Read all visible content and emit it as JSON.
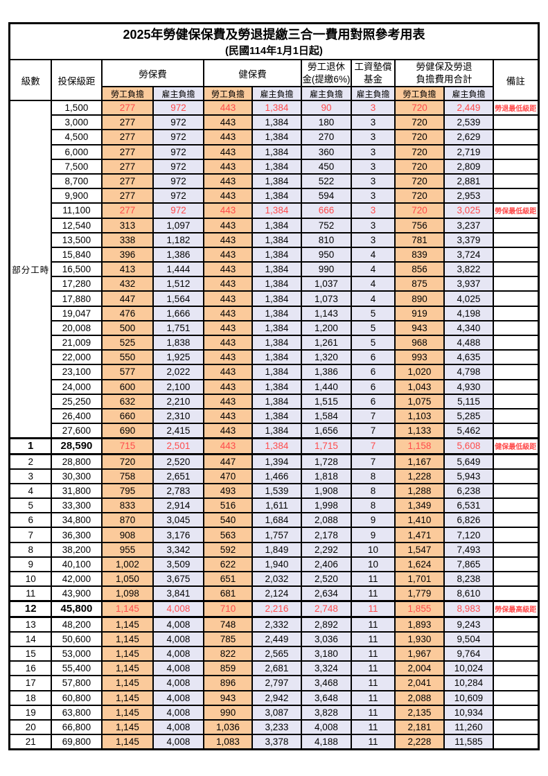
{
  "title": "2025年勞健保保費及勞退提繳三合一費用對照參考用表",
  "subtitle": "(民國114年1月1日起)",
  "columns": {
    "level": "級數",
    "bracket": "投保級距",
    "labor_insurance": "勞保費",
    "health_insurance": "健保費",
    "pension_line1": "勞工退休",
    "pension_line2": "金(提繳6%)",
    "wage_fund_line1": "工資墊償",
    "wage_fund_line2": "基金",
    "total_line1": "勞健保及勞退",
    "total_line2": "負擔費用合計",
    "remark": "備註"
  },
  "sub": {
    "employee": "勞工負擔",
    "employer": "雇主負擔"
  },
  "part_time": {
    "label": "部分工時",
    "rowspan": 23
  },
  "colors": {
    "employee_bg": "#FBCA9B",
    "employer_bg": "#E6E6F4",
    "highlight_red": "#FF4B4B",
    "border": "#000000"
  },
  "rows": [
    {
      "level": null,
      "bracket": "1,500",
      "v": [
        "277",
        "972",
        "443",
        "1,384",
        "90",
        "3",
        "720",
        "2,449"
      ],
      "remark": "勞退最低級距",
      "red": true
    },
    {
      "level": null,
      "bracket": "3,000",
      "v": [
        "277",
        "972",
        "443",
        "1,384",
        "180",
        "3",
        "720",
        "2,539"
      ],
      "remark": ""
    },
    {
      "level": null,
      "bracket": "4,500",
      "v": [
        "277",
        "972",
        "443",
        "1,384",
        "270",
        "3",
        "720",
        "2,629"
      ],
      "remark": ""
    },
    {
      "level": null,
      "bracket": "6,000",
      "v": [
        "277",
        "972",
        "443",
        "1,384",
        "360",
        "3",
        "720",
        "2,719"
      ],
      "remark": ""
    },
    {
      "level": null,
      "bracket": "7,500",
      "v": [
        "277",
        "972",
        "443",
        "1,384",
        "450",
        "3",
        "720",
        "2,809"
      ],
      "remark": ""
    },
    {
      "level": null,
      "bracket": "8,700",
      "v": [
        "277",
        "972",
        "443",
        "1,384",
        "522",
        "3",
        "720",
        "2,881"
      ],
      "remark": ""
    },
    {
      "level": null,
      "bracket": "9,900",
      "v": [
        "277",
        "972",
        "443",
        "1,384",
        "594",
        "3",
        "720",
        "2,953"
      ],
      "remark": ""
    },
    {
      "level": null,
      "bracket": "11,100",
      "v": [
        "277",
        "972",
        "443",
        "1,384",
        "666",
        "3",
        "720",
        "3,025"
      ],
      "remark": "勞保最低級距",
      "red": true
    },
    {
      "level": null,
      "bracket": "12,540",
      "v": [
        "313",
        "1,097",
        "443",
        "1,384",
        "752",
        "3",
        "756",
        "3,237"
      ],
      "remark": ""
    },
    {
      "level": null,
      "bracket": "13,500",
      "v": [
        "338",
        "1,182",
        "443",
        "1,384",
        "810",
        "3",
        "781",
        "3,379"
      ],
      "remark": ""
    },
    {
      "level": null,
      "bracket": "15,840",
      "v": [
        "396",
        "1,386",
        "443",
        "1,384",
        "950",
        "4",
        "839",
        "3,724"
      ],
      "remark": ""
    },
    {
      "level": null,
      "bracket": "16,500",
      "v": [
        "413",
        "1,444",
        "443",
        "1,384",
        "990",
        "4",
        "856",
        "3,822"
      ],
      "remark": ""
    },
    {
      "level": null,
      "bracket": "17,280",
      "v": [
        "432",
        "1,512",
        "443",
        "1,384",
        "1,037",
        "4",
        "875",
        "3,937"
      ],
      "remark": ""
    },
    {
      "level": null,
      "bracket": "17,880",
      "v": [
        "447",
        "1,564",
        "443",
        "1,384",
        "1,073",
        "4",
        "890",
        "4,025"
      ],
      "remark": ""
    },
    {
      "level": null,
      "bracket": "19,047",
      "v": [
        "476",
        "1,666",
        "443",
        "1,384",
        "1,143",
        "5",
        "919",
        "4,198"
      ],
      "remark": ""
    },
    {
      "level": null,
      "bracket": "20,008",
      "v": [
        "500",
        "1,751",
        "443",
        "1,384",
        "1,200",
        "5",
        "943",
        "4,340"
      ],
      "remark": ""
    },
    {
      "level": null,
      "bracket": "21,009",
      "v": [
        "525",
        "1,838",
        "443",
        "1,384",
        "1,261",
        "5",
        "968",
        "4,488"
      ],
      "remark": ""
    },
    {
      "level": null,
      "bracket": "22,000",
      "v": [
        "550",
        "1,925",
        "443",
        "1,384",
        "1,320",
        "6",
        "993",
        "4,635"
      ],
      "remark": ""
    },
    {
      "level": null,
      "bracket": "23,100",
      "v": [
        "577",
        "2,022",
        "443",
        "1,384",
        "1,386",
        "6",
        "1,020",
        "4,798"
      ],
      "remark": ""
    },
    {
      "level": null,
      "bracket": "24,000",
      "v": [
        "600",
        "2,100",
        "443",
        "1,384",
        "1,440",
        "6",
        "1,043",
        "4,930"
      ],
      "remark": ""
    },
    {
      "level": null,
      "bracket": "25,250",
      "v": [
        "632",
        "2,210",
        "443",
        "1,384",
        "1,515",
        "6",
        "1,075",
        "5,115"
      ],
      "remark": ""
    },
    {
      "level": null,
      "bracket": "26,400",
      "v": [
        "660",
        "2,310",
        "443",
        "1,384",
        "1,584",
        "7",
        "1,103",
        "5,285"
      ],
      "remark": ""
    },
    {
      "level": null,
      "bracket": "27,600",
      "v": [
        "690",
        "2,415",
        "443",
        "1,384",
        "1,656",
        "7",
        "1,133",
        "5,462"
      ],
      "remark": ""
    },
    {
      "level": "1",
      "bracket": "28,590",
      "v": [
        "715",
        "2,501",
        "443",
        "1,384",
        "1,715",
        "7",
        "1,158",
        "5,608"
      ],
      "remark": "健保最低級距",
      "red": true,
      "heavy": true
    },
    {
      "level": "2",
      "bracket": "28,800",
      "v": [
        "720",
        "2,520",
        "447",
        "1,394",
        "1,728",
        "7",
        "1,167",
        "5,649"
      ],
      "remark": ""
    },
    {
      "level": "3",
      "bracket": "30,300",
      "v": [
        "758",
        "2,651",
        "470",
        "1,466",
        "1,818",
        "8",
        "1,228",
        "5,943"
      ],
      "remark": ""
    },
    {
      "level": "4",
      "bracket": "31,800",
      "v": [
        "795",
        "2,783",
        "493",
        "1,539",
        "1,908",
        "8",
        "1,288",
        "6,238"
      ],
      "remark": ""
    },
    {
      "level": "5",
      "bracket": "33,300",
      "v": [
        "833",
        "2,914",
        "516",
        "1,611",
        "1,998",
        "8",
        "1,349",
        "6,531"
      ],
      "remark": ""
    },
    {
      "level": "6",
      "bracket": "34,800",
      "v": [
        "870",
        "3,045",
        "540",
        "1,684",
        "2,088",
        "9",
        "1,410",
        "6,826"
      ],
      "remark": ""
    },
    {
      "level": "7",
      "bracket": "36,300",
      "v": [
        "908",
        "3,176",
        "563",
        "1,757",
        "2,178",
        "9",
        "1,471",
        "7,120"
      ],
      "remark": ""
    },
    {
      "level": "8",
      "bracket": "38,200",
      "v": [
        "955",
        "3,342",
        "592",
        "1,849",
        "2,292",
        "10",
        "1,547",
        "7,493"
      ],
      "remark": ""
    },
    {
      "level": "9",
      "bracket": "40,100",
      "v": [
        "1,002",
        "3,509",
        "622",
        "1,940",
        "2,406",
        "10",
        "1,624",
        "7,865"
      ],
      "remark": ""
    },
    {
      "level": "10",
      "bracket": "42,000",
      "v": [
        "1,050",
        "3,675",
        "651",
        "2,032",
        "2,520",
        "11",
        "1,701",
        "8,238"
      ],
      "remark": ""
    },
    {
      "level": "11",
      "bracket": "43,900",
      "v": [
        "1,098",
        "3,841",
        "681",
        "2,124",
        "2,634",
        "11",
        "1,779",
        "8,610"
      ],
      "remark": ""
    },
    {
      "level": "12",
      "bracket": "45,800",
      "v": [
        "1,145",
        "4,008",
        "710",
        "2,216",
        "2,748",
        "11",
        "1,855",
        "8,983"
      ],
      "remark": "勞保最高級距",
      "red": true,
      "heavy": true
    },
    {
      "level": "13",
      "bracket": "48,200",
      "v": [
        "1,145",
        "4,008",
        "748",
        "2,332",
        "2,892",
        "11",
        "1,893",
        "9,243"
      ],
      "remark": ""
    },
    {
      "level": "14",
      "bracket": "50,600",
      "v": [
        "1,145",
        "4,008",
        "785",
        "2,449",
        "3,036",
        "11",
        "1,930",
        "9,504"
      ],
      "remark": ""
    },
    {
      "level": "15",
      "bracket": "53,000",
      "v": [
        "1,145",
        "4,008",
        "822",
        "2,565",
        "3,180",
        "11",
        "1,967",
        "9,764"
      ],
      "remark": ""
    },
    {
      "level": "16",
      "bracket": "55,400",
      "v": [
        "1,145",
        "4,008",
        "859",
        "2,681",
        "3,324",
        "11",
        "2,004",
        "10,024"
      ],
      "remark": ""
    },
    {
      "level": "17",
      "bracket": "57,800",
      "v": [
        "1,145",
        "4,008",
        "896",
        "2,797",
        "3,468",
        "11",
        "2,041",
        "10,284"
      ],
      "remark": ""
    },
    {
      "level": "18",
      "bracket": "60,800",
      "v": [
        "1,145",
        "4,008",
        "943",
        "2,942",
        "3,648",
        "11",
        "2,088",
        "10,609"
      ],
      "remark": ""
    },
    {
      "level": "19",
      "bracket": "63,800",
      "v": [
        "1,145",
        "4,008",
        "990",
        "3,087",
        "3,828",
        "11",
        "2,135",
        "10,934"
      ],
      "remark": ""
    },
    {
      "level": "20",
      "bracket": "66,800",
      "v": [
        "1,145",
        "4,008",
        "1,036",
        "3,233",
        "4,008",
        "11",
        "2,181",
        "11,260"
      ],
      "remark": ""
    },
    {
      "level": "21",
      "bracket": "69,800",
      "v": [
        "1,145",
        "4,008",
        "1,083",
        "3,378",
        "4,188",
        "11",
        "2,228",
        "11,585"
      ],
      "remark": ""
    }
  ]
}
